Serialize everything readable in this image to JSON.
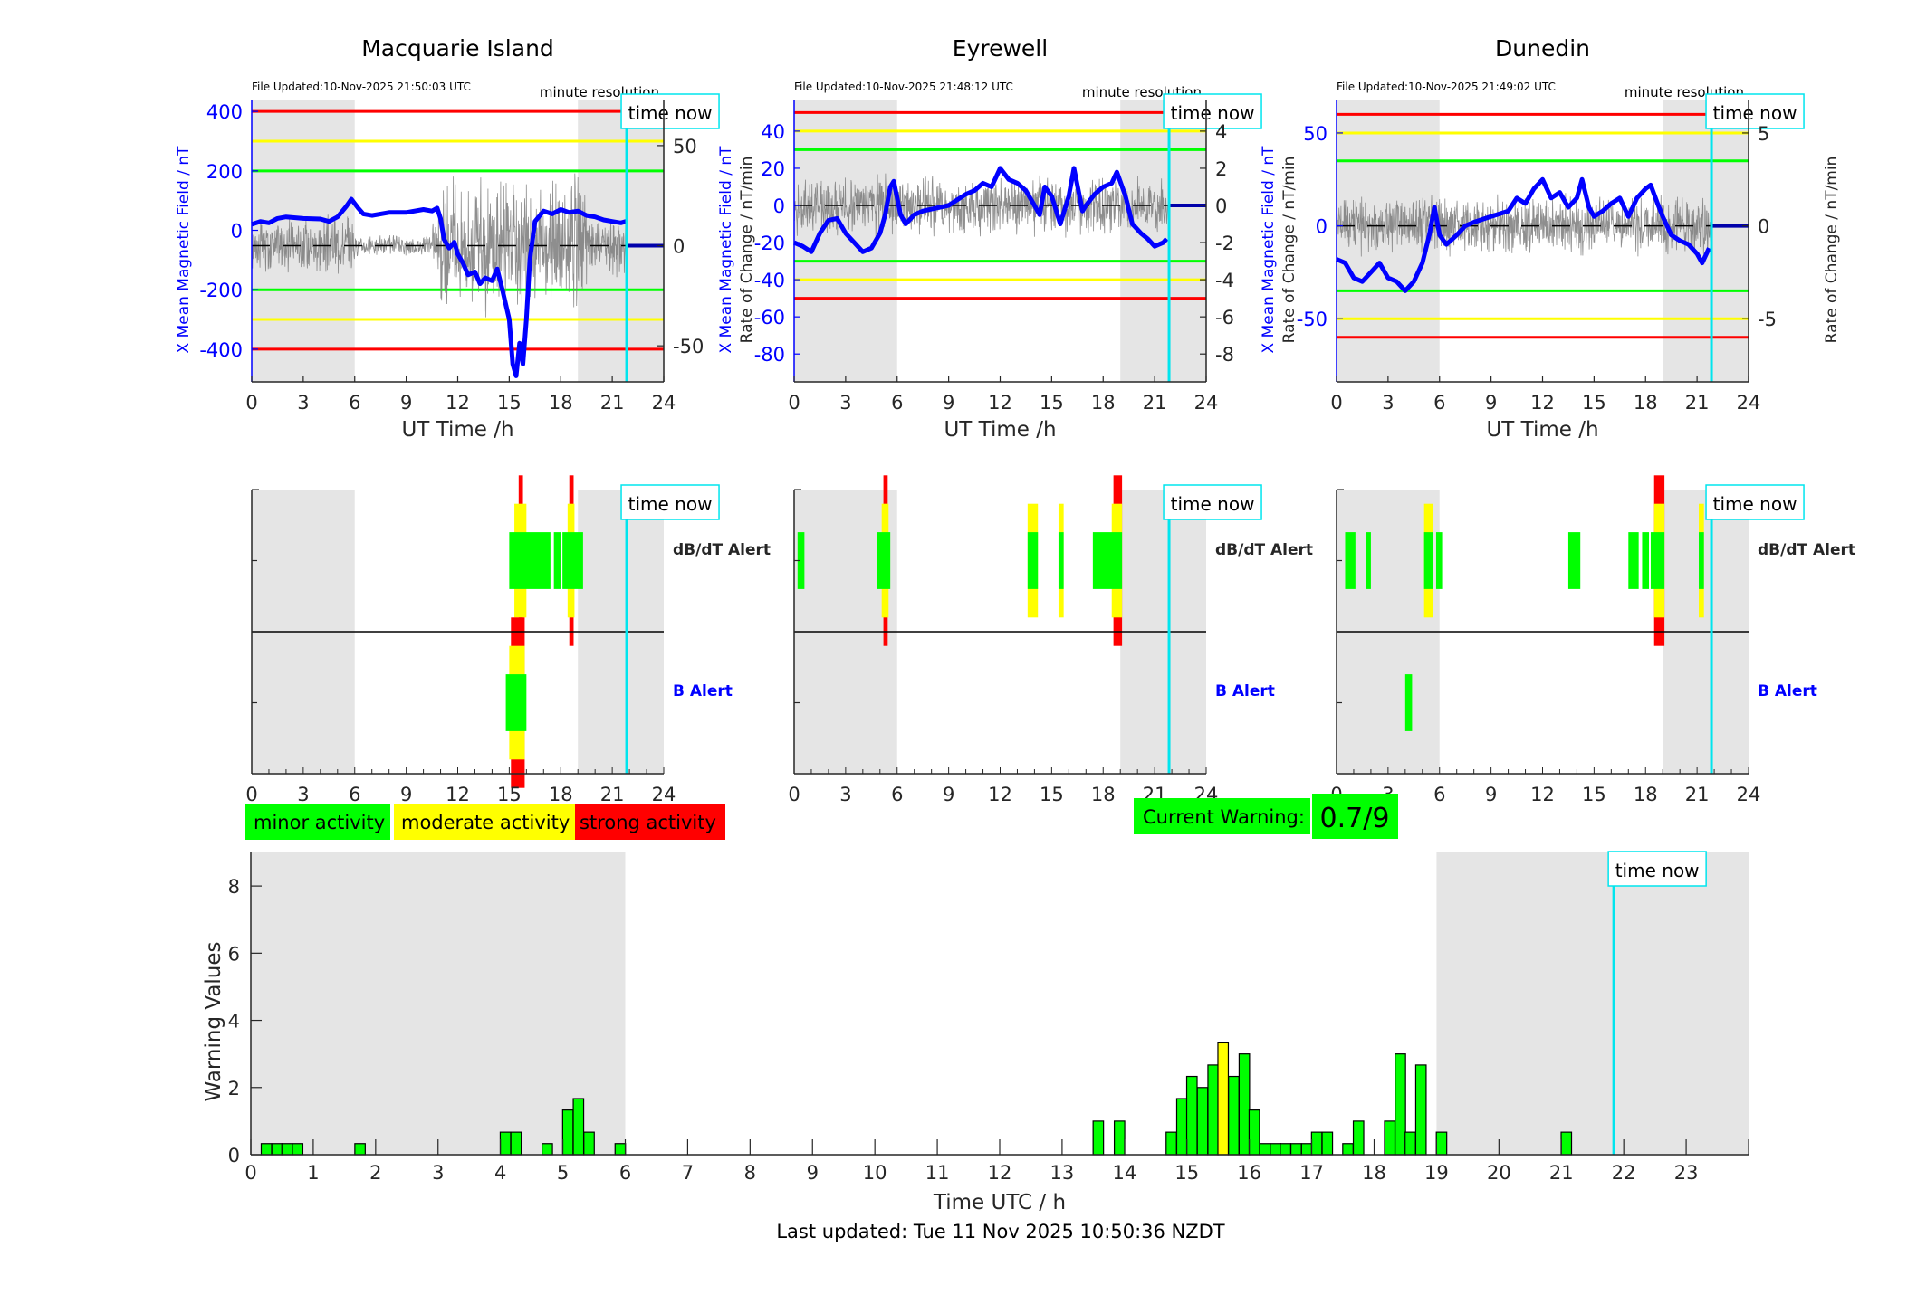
{
  "colors": {
    "field_line": "#0000ff",
    "roc_line": "#555555",
    "night_shade": "#e5e5e5",
    "time_now": "#00e5ee",
    "minor": "#00ff00",
    "moderate": "#ffff00",
    "strong": "#ff0000",
    "axis": "#262626"
  },
  "time_now_hour": 21.84,
  "night_shade_hours": [
    [
      0,
      6
    ],
    [
      19,
      24
    ]
  ],
  "stations": [
    {
      "name": "Macquarie Island",
      "file_updated": "File Updated:10-Nov-2025 21:50:03 UTC",
      "resolution": "minute resolution",
      "time_now_label": "time now",
      "left_axis_label": "X Mean Magnetic Field / nT",
      "right_axis_label": "Rate of Change / nT/min",
      "x_label": "UT Time /h",
      "left_ylim": [
        -510,
        440
      ],
      "left_ticks": [
        "400",
        "200",
        "0",
        "-200",
        "-400"
      ],
      "left_tick_values": [
        400,
        200,
        0,
        -200,
        -400
      ],
      "right_ylim": [
        -68,
        73
      ],
      "right_ticks": [
        "50",
        "0",
        "-50"
      ],
      "right_tick_values": [
        50,
        0,
        -50
      ],
      "thresholds_left": {
        "red": 400,
        "yellow": 300,
        "green": 200
      },
      "field_series": [
        [
          0,
          20
        ],
        [
          0.5,
          30
        ],
        [
          1,
          25
        ],
        [
          1.5,
          40
        ],
        [
          2,
          45
        ],
        [
          3,
          40
        ],
        [
          4,
          38
        ],
        [
          4.5,
          30
        ],
        [
          5,
          45
        ],
        [
          5.5,
          80
        ],
        [
          5.8,
          105
        ],
        [
          6.2,
          75
        ],
        [
          6.5,
          55
        ],
        [
          7,
          50
        ],
        [
          8,
          60
        ],
        [
          9,
          60
        ],
        [
          10,
          70
        ],
        [
          10.5,
          65
        ],
        [
          10.8,
          75
        ],
        [
          11,
          40
        ],
        [
          11.2,
          -30
        ],
        [
          11.5,
          -60
        ],
        [
          11.8,
          -40
        ],
        [
          12,
          -80
        ],
        [
          12.3,
          -110
        ],
        [
          12.6,
          -150
        ],
        [
          13,
          -140
        ],
        [
          13.3,
          -180
        ],
        [
          13.6,
          -160
        ],
        [
          14,
          -170
        ],
        [
          14.3,
          -130
        ],
        [
          14.6,
          -200
        ],
        [
          15,
          -300
        ],
        [
          15.2,
          -450
        ],
        [
          15.4,
          -490
        ],
        [
          15.6,
          -380
        ],
        [
          15.8,
          -450
        ],
        [
          16,
          -300
        ],
        [
          16.2,
          -100
        ],
        [
          16.5,
          30
        ],
        [
          17,
          65
        ],
        [
          17.5,
          55
        ],
        [
          18,
          70
        ],
        [
          18.5,
          60
        ],
        [
          19,
          65
        ],
        [
          19.5,
          50
        ],
        [
          20,
          45
        ],
        [
          20.5,
          35
        ],
        [
          21,
          30
        ],
        [
          21.5,
          25
        ],
        [
          21.8,
          30
        ]
      ],
      "dbdt_alerts": [
        {
          "start": 15.0,
          "end": 17.4,
          "level": "minor"
        },
        {
          "start": 15.3,
          "end": 16.0,
          "level": "moderate"
        },
        {
          "start": 15.55,
          "end": 15.8,
          "level": "strong"
        },
        {
          "start": 17.6,
          "end": 18.0,
          "level": "minor"
        },
        {
          "start": 18.1,
          "end": 19.3,
          "level": "minor"
        },
        {
          "start": 18.4,
          "end": 18.8,
          "level": "moderate"
        },
        {
          "start": 18.5,
          "end": 18.75,
          "level": "strong"
        }
      ],
      "b_alerts": [
        {
          "start": 14.8,
          "end": 16.0,
          "level": "minor"
        },
        {
          "start": 15.0,
          "end": 15.9,
          "level": "moderate"
        },
        {
          "start": 15.1,
          "end": 15.9,
          "level": "strong"
        }
      ],
      "dbdt_label": "dB/dT Alert",
      "b_label": "B Alert"
    },
    {
      "name": "Eyrewell",
      "file_updated": "File Updated:10-Nov-2025 21:48:12 UTC",
      "resolution": "minute resolution",
      "time_now_label": "time now",
      "left_axis_label": "X Mean Magnetic Field / nT",
      "right_axis_label": "Rate of Change / nT/min",
      "x_label": "UT Time /h",
      "left_ylim": [
        -95,
        57
      ],
      "left_ticks": [
        "40",
        "20",
        "0",
        "-20",
        "-40",
        "-60",
        "-80"
      ],
      "left_tick_values": [
        40,
        20,
        0,
        -20,
        -40,
        -60,
        -80
      ],
      "right_ylim": [
        -9.5,
        5.7
      ],
      "right_ticks": [
        "4",
        "2",
        "0",
        "-2",
        "-4",
        "-6",
        "-8"
      ],
      "right_tick_values": [
        4,
        2,
        0,
        -2,
        -4,
        -6,
        -8
      ],
      "thresholds_left": {
        "red": 50,
        "yellow": 40,
        "green": 30
      },
      "field_series": [
        [
          0,
          -20
        ],
        [
          0.5,
          -22
        ],
        [
          1,
          -25
        ],
        [
          1.5,
          -15
        ],
        [
          2,
          -8
        ],
        [
          2.5,
          -7
        ],
        [
          3,
          -15
        ],
        [
          3.5,
          -20
        ],
        [
          4,
          -25
        ],
        [
          4.5,
          -23
        ],
        [
          5,
          -15
        ],
        [
          5.3,
          -5
        ],
        [
          5.6,
          10
        ],
        [
          5.8,
          13
        ],
        [
          6.2,
          -5
        ],
        [
          6.5,
          -10
        ],
        [
          7,
          -5
        ],
        [
          7.5,
          -3
        ],
        [
          8,
          -2
        ],
        [
          9,
          0
        ],
        [
          9.5,
          3
        ],
        [
          10,
          6
        ],
        [
          10.5,
          8
        ],
        [
          11,
          12
        ],
        [
          11.5,
          10
        ],
        [
          12,
          20
        ],
        [
          12.5,
          14
        ],
        [
          13,
          12
        ],
        [
          13.5,
          8
        ],
        [
          14,
          0
        ],
        [
          14.3,
          -5
        ],
        [
          14.6,
          10
        ],
        [
          15,
          5
        ],
        [
          15.5,
          -10
        ],
        [
          16,
          5
        ],
        [
          16.3,
          20
        ],
        [
          16.8,
          -3
        ],
        [
          17,
          0
        ],
        [
          17.5,
          6
        ],
        [
          18,
          10
        ],
        [
          18.5,
          12
        ],
        [
          18.8,
          18
        ],
        [
          19.3,
          5
        ],
        [
          19.7,
          -10
        ],
        [
          20.2,
          -15
        ],
        [
          20.6,
          -18
        ],
        [
          21,
          -22
        ],
        [
          21.5,
          -20
        ],
        [
          21.7,
          -18
        ]
      ],
      "dbdt_alerts": [
        {
          "start": 0.2,
          "end": 0.6,
          "level": "minor"
        },
        {
          "start": 4.8,
          "end": 5.6,
          "level": "minor"
        },
        {
          "start": 5.1,
          "end": 5.5,
          "level": "moderate"
        },
        {
          "start": 5.2,
          "end": 5.45,
          "level": "strong"
        },
        {
          "start": 13.6,
          "end": 14.2,
          "level": "minor"
        },
        {
          "start": 13.6,
          "end": 14.2,
          "level": "moderate"
        },
        {
          "start": 15.4,
          "end": 15.7,
          "level": "minor"
        },
        {
          "start": 15.4,
          "end": 15.7,
          "level": "moderate"
        },
        {
          "start": 17.4,
          "end": 19.1,
          "level": "minor"
        },
        {
          "start": 18.5,
          "end": 19.1,
          "level": "moderate"
        },
        {
          "start": 18.6,
          "end": 19.1,
          "level": "strong"
        }
      ],
      "b_alerts": [],
      "dbdt_label": "dB/dT Alert",
      "b_label": "B Alert"
    },
    {
      "name": "Dunedin",
      "file_updated": "File Updated:10-Nov-2025 21:49:02 UTC",
      "resolution": "minute resolution",
      "time_now_label": "time now",
      "left_axis_label": "X Mean Magnetic Field / nT",
      "right_axis_label": "Rate of Change / nT/min",
      "x_label": "UT Time /h",
      "left_ylim": [
        -84,
        68
      ],
      "left_ticks": [
        "50",
        "0",
        "-50"
      ],
      "left_tick_values": [
        50,
        0,
        -50
      ],
      "right_ylim": [
        -8.4,
        6.8
      ],
      "right_ticks": [
        "5",
        "0",
        "-5"
      ],
      "right_tick_values": [
        5,
        0,
        -5
      ],
      "thresholds_left": {
        "red": 60,
        "yellow": 50,
        "green": 35
      },
      "field_series": [
        [
          0,
          -18
        ],
        [
          0.5,
          -20
        ],
        [
          1,
          -28
        ],
        [
          1.5,
          -30
        ],
        [
          2,
          -25
        ],
        [
          2.5,
          -20
        ],
        [
          3,
          -28
        ],
        [
          3.5,
          -30
        ],
        [
          4,
          -35
        ],
        [
          4.5,
          -30
        ],
        [
          5,
          -20
        ],
        [
          5.4,
          -5
        ],
        [
          5.7,
          10
        ],
        [
          6,
          -5
        ],
        [
          6.4,
          -10
        ],
        [
          7,
          -5
        ],
        [
          7.5,
          0
        ],
        [
          8,
          2
        ],
        [
          9,
          5
        ],
        [
          10,
          8
        ],
        [
          10.5,
          15
        ],
        [
          11,
          12
        ],
        [
          11.5,
          20
        ],
        [
          12,
          25
        ],
        [
          12.5,
          15
        ],
        [
          13,
          18
        ],
        [
          13.5,
          10
        ],
        [
          14,
          15
        ],
        [
          14.3,
          25
        ],
        [
          14.7,
          10
        ],
        [
          15,
          5
        ],
        [
          15.5,
          8
        ],
        [
          16,
          12
        ],
        [
          16.5,
          15
        ],
        [
          17,
          5
        ],
        [
          17.5,
          15
        ],
        [
          18,
          20
        ],
        [
          18.3,
          22
        ],
        [
          18.7,
          12
        ],
        [
          19,
          5
        ],
        [
          19.5,
          -5
        ],
        [
          20,
          -8
        ],
        [
          20.5,
          -10
        ],
        [
          21,
          -15
        ],
        [
          21.3,
          -20
        ],
        [
          21.7,
          -12
        ]
      ],
      "dbdt_alerts": [
        {
          "start": 0.5,
          "end": 1.1,
          "level": "minor"
        },
        {
          "start": 1.7,
          "end": 2.0,
          "level": "minor"
        },
        {
          "start": 5.1,
          "end": 5.6,
          "level": "minor"
        },
        {
          "start": 5.1,
          "end": 5.6,
          "level": "moderate"
        },
        {
          "start": 5.8,
          "end": 6.15,
          "level": "minor"
        },
        {
          "start": 13.5,
          "end": 14.2,
          "level": "minor"
        },
        {
          "start": 17.0,
          "end": 17.6,
          "level": "minor"
        },
        {
          "start": 17.8,
          "end": 18.2,
          "level": "minor"
        },
        {
          "start": 18.3,
          "end": 19.1,
          "level": "minor"
        },
        {
          "start": 18.5,
          "end": 19.1,
          "level": "moderate"
        },
        {
          "start": 18.5,
          "end": 19.1,
          "level": "strong"
        },
        {
          "start": 21.1,
          "end": 21.4,
          "level": "minor"
        },
        {
          "start": 21.1,
          "end": 21.4,
          "level": "moderate"
        }
      ],
      "b_alerts": [
        {
          "start": 4.0,
          "end": 4.4,
          "level": "minor"
        }
      ],
      "dbdt_label": "dB/dT Alert",
      "b_label": "B Alert"
    }
  ],
  "x_ticks_station": [
    "0",
    "3",
    "6",
    "9",
    "12",
    "15",
    "18",
    "21",
    "24"
  ],
  "legend": {
    "minor": "minor activity",
    "moderate": "moderate activity",
    "strong": "strong activity"
  },
  "current_warning": {
    "label": "Current Warning:",
    "value": "0.7/9"
  },
  "chart_data": {
    "type": "bar",
    "title": "",
    "xlabel": "Time UTC / h",
    "ylabel": "Warning Values",
    "xlim": [
      0,
      24
    ],
    "ylim": [
      0,
      9
    ],
    "x_ticks": [
      "0",
      "1",
      "2",
      "3",
      "4",
      "5",
      "6",
      "7",
      "8",
      "9",
      "10",
      "11",
      "12",
      "13",
      "14",
      "15",
      "16",
      "17",
      "18",
      "19",
      "20",
      "21",
      "22",
      "23"
    ],
    "y_ticks": [
      "0",
      "2",
      "4",
      "6",
      "8"
    ],
    "time_now_label": "time now",
    "bar_width_h": 0.1667,
    "bars": [
      {
        "x": 0.25,
        "v": 0.33
      },
      {
        "x": 0.42,
        "v": 0.33
      },
      {
        "x": 0.58,
        "v": 0.33
      },
      {
        "x": 0.75,
        "v": 0.33
      },
      {
        "x": 1.75,
        "v": 0.33
      },
      {
        "x": 4.08,
        "v": 0.67
      },
      {
        "x": 4.25,
        "v": 0.67
      },
      {
        "x": 4.75,
        "v": 0.33
      },
      {
        "x": 5.08,
        "v": 1.33
      },
      {
        "x": 5.25,
        "v": 1.67
      },
      {
        "x": 5.42,
        "v": 0.67
      },
      {
        "x": 5.92,
        "v": 0.33
      },
      {
        "x": 13.58,
        "v": 1.0
      },
      {
        "x": 13.92,
        "v": 1.0
      },
      {
        "x": 14.75,
        "v": 0.67
      },
      {
        "x": 14.92,
        "v": 1.67
      },
      {
        "x": 15.08,
        "v": 2.33
      },
      {
        "x": 15.25,
        "v": 2.0
      },
      {
        "x": 15.42,
        "v": 2.67
      },
      {
        "x": 15.58,
        "v": 3.33,
        "level": "moderate"
      },
      {
        "x": 15.75,
        "v": 2.33
      },
      {
        "x": 15.92,
        "v": 3.0
      },
      {
        "x": 16.08,
        "v": 1.33
      },
      {
        "x": 16.25,
        "v": 0.33
      },
      {
        "x": 16.42,
        "v": 0.33
      },
      {
        "x": 16.58,
        "v": 0.33
      },
      {
        "x": 16.75,
        "v": 0.33
      },
      {
        "x": 16.92,
        "v": 0.33
      },
      {
        "x": 17.08,
        "v": 0.67
      },
      {
        "x": 17.25,
        "v": 0.67
      },
      {
        "x": 17.58,
        "v": 0.33
      },
      {
        "x": 17.75,
        "v": 1.0
      },
      {
        "x": 18.25,
        "v": 1.0
      },
      {
        "x": 18.42,
        "v": 3.0
      },
      {
        "x": 18.58,
        "v": 0.67
      },
      {
        "x": 18.75,
        "v": 2.67
      },
      {
        "x": 19.08,
        "v": 0.67
      },
      {
        "x": 21.08,
        "v": 0.67
      }
    ]
  },
  "footer": "Last updated: Tue 11 Nov 2025 10:50:36 NZDT"
}
